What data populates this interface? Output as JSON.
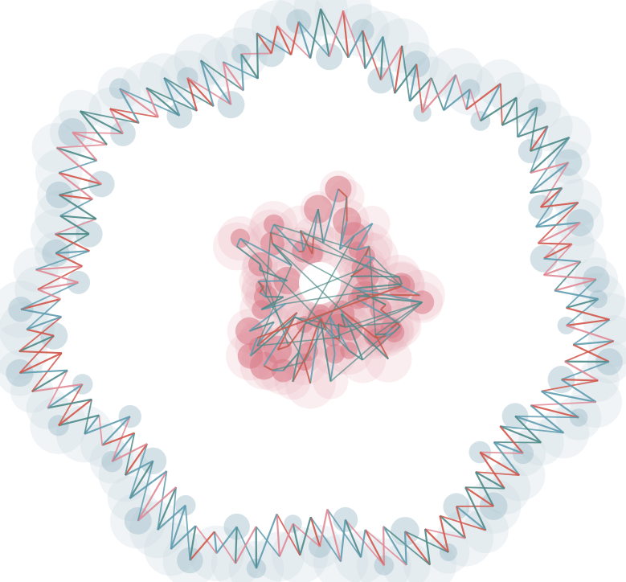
{
  "figure": {
    "description_visible_text": "",
    "structures": [
      {
        "id": "outer-ring",
        "kind": "ring-of-linked-nodes",
        "halo_color": "#9fbfcc",
        "halo_outer_color": "#c9d6de",
        "edge_colors": [
          "#4e8a88",
          "#d1564a",
          "#5f9cb0",
          "#e08a96"
        ]
      },
      {
        "id": "inner-cluster",
        "kind": "dense-cluster-of-linked-nodes",
        "halo_color": "#d97a86",
        "halo_outer_color": "#e9b3ba",
        "edge_colors": [
          "#4e8a88",
          "#c75a4c",
          "#5f9cb0"
        ]
      }
    ]
  }
}
